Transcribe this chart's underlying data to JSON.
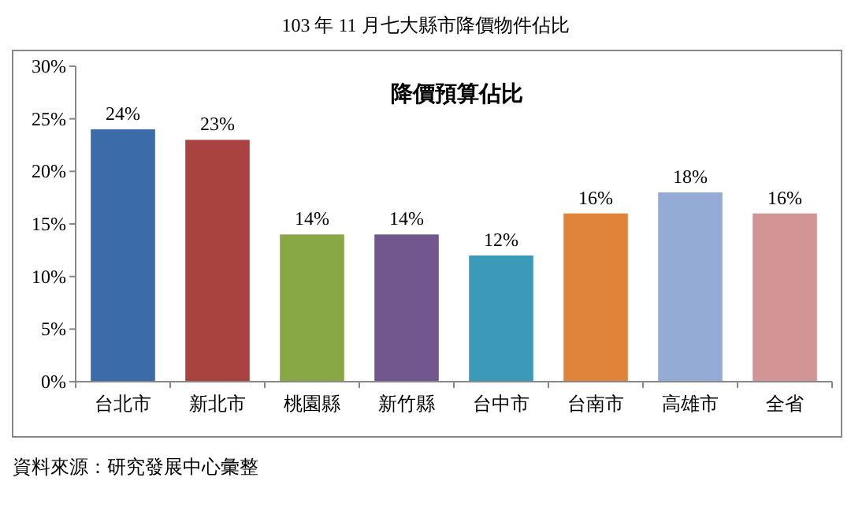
{
  "chart_data": {
    "type": "bar",
    "title": "103 年 11 月七大縣市降價物件佔比",
    "subtitle": "降價預算佔比",
    "categories": [
      "台北市",
      "新北市",
      "桃園縣",
      "新竹縣",
      "台中市",
      "台南市",
      "高雄市",
      "全省"
    ],
    "values": [
      24,
      23,
      14,
      14,
      12,
      16,
      18,
      16
    ],
    "colors": [
      "#3b6ba8",
      "#a9433f",
      "#88a845",
      "#71578e",
      "#3a9ab7",
      "#e0833b",
      "#94abd5",
      "#d39495"
    ],
    "value_labels": [
      "24%",
      "23%",
      "14%",
      "14%",
      "12%",
      "16%",
      "18%",
      "16%"
    ],
    "ylim": [
      0,
      30
    ],
    "yticks": [
      {
        "value": 0,
        "label": "0%"
      },
      {
        "value": 5,
        "label": "5%"
      },
      {
        "value": 10,
        "label": "10%"
      },
      {
        "value": 15,
        "label": "15%"
      },
      {
        "value": 20,
        "label": "20%"
      },
      {
        "value": 25,
        "label": "25%"
      },
      {
        "value": 30,
        "label": "30%"
      }
    ],
    "grid": false,
    "annotations": [
      "資料來源：研究發展中心彙整"
    ]
  }
}
